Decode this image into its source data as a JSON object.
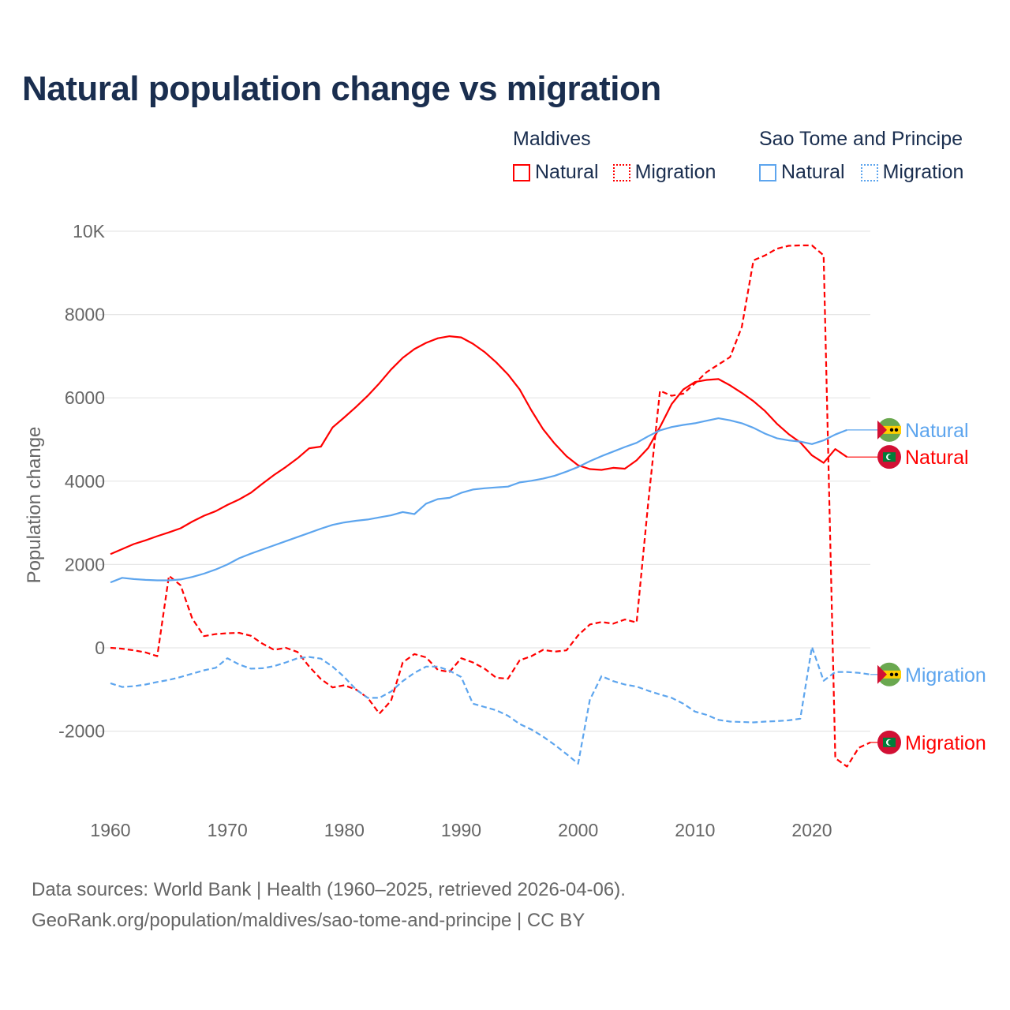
{
  "title": "Natural population change vs migration",
  "legend": {
    "groups": [
      {
        "name": "Maldives",
        "items": [
          {
            "label": "Natural",
            "style": "solid",
            "color": "#ff0000"
          },
          {
            "label": "Migration",
            "style": "dotted",
            "color": "#ff0000"
          }
        ]
      },
      {
        "name": "Sao Tome and Principe",
        "items": [
          {
            "label": "Natural",
            "style": "solid",
            "color": "#5da5ee"
          },
          {
            "label": "Migration",
            "style": "dotted",
            "color": "#5da5ee"
          }
        ]
      }
    ]
  },
  "footer": {
    "line1": "Data sources: World Bank | Health (1960–2025, retrieved 2026-04-06).",
    "line2": "GeoRank.org/population/maldives/sao-tome-and-principe | CC BY"
  },
  "chart_data": {
    "type": "line",
    "title": "Natural population change vs migration",
    "xlabel": "",
    "ylabel": "Population change",
    "xlim": [
      1960,
      2025
    ],
    "ylim": [
      -3500,
      10000
    ],
    "x_ticks": [
      1960,
      1970,
      1980,
      1990,
      2000,
      2010,
      2020
    ],
    "x_tick_labels": [
      "1960",
      "1970",
      "1980",
      "1990",
      "2000",
      "2010",
      "2020"
    ],
    "y_ticks": [
      -2000,
      0,
      2000,
      4000,
      6000,
      8000,
      10000
    ],
    "y_tick_labels": [
      "-2000",
      "0",
      "2000",
      "4000",
      "6000",
      "8000",
      "10K"
    ],
    "grid": true,
    "legend_position": "top-right",
    "series": [
      {
        "name": "Maldives Natural",
        "country": "Maldives",
        "end_label": "Natural",
        "color": "#ff0000",
        "dash": false,
        "flag": "maldives",
        "start": 1960,
        "values": [
          2250,
          2370,
          2490,
          2580,
          2680,
          2770,
          2870,
          3030,
          3170,
          3280,
          3430,
          3560,
          3720,
          3940,
          4150,
          4340,
          4550,
          4790,
          4830,
          5290,
          5530,
          5780,
          6050,
          6350,
          6680,
          6960,
          7170,
          7320,
          7430,
          7480,
          7450,
          7300,
          7100,
          6850,
          6560,
          6200,
          5700,
          5250,
          4900,
          4600,
          4380,
          4290,
          4270,
          4320,
          4300,
          4500,
          4800,
          5300,
          5850,
          6200,
          6380,
          6430,
          6450,
          6300,
          6120,
          5920,
          5680,
          5380,
          5130,
          4930,
          4620,
          4440,
          4770,
          4580
        ]
      },
      {
        "name": "Maldives Migration",
        "country": "Maldives",
        "end_label": "Migration",
        "color": "#ff0000",
        "dash": true,
        "flag": "maldives",
        "start": 1960,
        "values": [
          0,
          -20,
          -60,
          -110,
          -200,
          1730,
          1500,
          700,
          280,
          330,
          350,
          360,
          290,
          100,
          -50,
          0,
          -100,
          -450,
          -750,
          -950,
          -900,
          -1000,
          -1200,
          -1580,
          -1270,
          -350,
          -150,
          -230,
          -530,
          -580,
          -250,
          -350,
          -500,
          -720,
          -740,
          -300,
          -200,
          -50,
          -90,
          -60,
          300,
          560,
          620,
          580,
          680,
          610,
          3500,
          6170,
          6050,
          6100,
          6350,
          6620,
          6800,
          6980,
          7700,
          9300,
          9420,
          9580,
          9650,
          9660,
          9660,
          9420,
          -2650,
          -2850,
          -2400,
          -2270
        ]
      },
      {
        "name": "Sao Tome and Principe Natural",
        "country": "Sao Tome and Principe",
        "end_label": "Natural",
        "color": "#5da5ee",
        "dash": false,
        "flag": "stp",
        "start": 1960,
        "values": [
          1570,
          1680,
          1650,
          1630,
          1620,
          1620,
          1640,
          1700,
          1780,
          1880,
          2000,
          2150,
          2260,
          2360,
          2460,
          2560,
          2660,
          2760,
          2860,
          2950,
          3010,
          3050,
          3080,
          3130,
          3180,
          3260,
          3210,
          3460,
          3570,
          3600,
          3720,
          3800,
          3830,
          3850,
          3870,
          3970,
          4010,
          4060,
          4130,
          4230,
          4340,
          4480,
          4600,
          4710,
          4820,
          4920,
          5080,
          5220,
          5300,
          5350,
          5390,
          5450,
          5510,
          5460,
          5390,
          5280,
          5140,
          5030,
          4980,
          4950,
          4890,
          4980,
          5120,
          5230
        ]
      },
      {
        "name": "Sao Tome and Principe Migration",
        "country": "Sao Tome and Principe",
        "end_label": "Migration",
        "color": "#5da5ee",
        "dash": true,
        "flag": "stp",
        "start": 1960,
        "values": [
          -850,
          -940,
          -920,
          -880,
          -820,
          -770,
          -700,
          -620,
          -540,
          -480,
          -250,
          -400,
          -500,
          -490,
          -440,
          -350,
          -250,
          -220,
          -260,
          -450,
          -700,
          -1000,
          -1200,
          -1200,
          -1050,
          -800,
          -600,
          -450,
          -450,
          -550,
          -700,
          -1340,
          -1420,
          -1500,
          -1630,
          -1830,
          -1960,
          -2130,
          -2330,
          -2550,
          -2780,
          -1250,
          -680,
          -800,
          -880,
          -930,
          -1030,
          -1120,
          -1200,
          -1340,
          -1530,
          -1610,
          -1730,
          -1770,
          -1780,
          -1790,
          -1770,
          -1760,
          -1740,
          -1700,
          20,
          -790,
          -580,
          -580,
          -600,
          -640
        ]
      }
    ]
  }
}
